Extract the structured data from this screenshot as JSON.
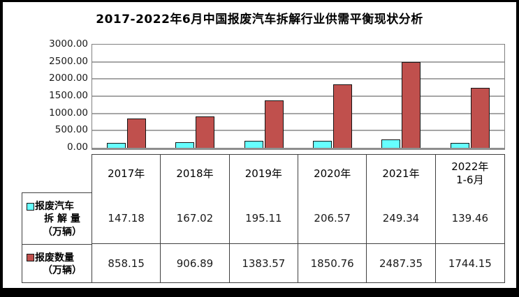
{
  "title": "2017-2022年6月中国报废汽车拆解行业供需平衡现状分析",
  "chart_data": {
    "type": "bar",
    "title": "2017-2022年6月中国报废汽车拆解行业供需平衡现状分析",
    "categories": [
      "2017年",
      "2018年",
      "2019年",
      "2020年",
      "2021年",
      "2022年\n1-6月"
    ],
    "series": [
      {
        "name": "报废汽车拆解量（万辆）",
        "color": "#66FFFF",
        "values": [
          147.18,
          167.02,
          195.11,
          206.57,
          249.34,
          139.46
        ]
      },
      {
        "name": "报废数量（万辆）",
        "color": "#C0504D",
        "values": [
          858.15,
          906.89,
          1383.57,
          1850.76,
          2487.35,
          1744.15
        ]
      }
    ],
    "xlabel": "",
    "ylabel": "",
    "ylim": [
      0,
      3000
    ],
    "ytick_step": 500,
    "yticks": [
      "3000.00",
      "2500.00",
      "2000.00",
      "1500.00",
      "1000.00",
      "500.00",
      "0.00"
    ],
    "grid": true,
    "legend_position": "data-table-left"
  },
  "legend": {
    "items": [
      {
        "lines": [
          "报废汽车",
          "拆 解 量",
          "（万辆）"
        ],
        "color": "#66FFFF"
      },
      {
        "lines": [
          "报废数量",
          "（万辆）"
        ],
        "color": "#C0504D"
      }
    ]
  },
  "colors": {
    "series1": "#66FFFF",
    "series2": "#C0504D",
    "gridline": "#A6A6A6",
    "axis_line": "#8E8E8E",
    "plot_border": "#7F7F7F",
    "table_border": "#404040",
    "frame": "#000000",
    "background": "#FFFFFF",
    "text": "#000000"
  }
}
